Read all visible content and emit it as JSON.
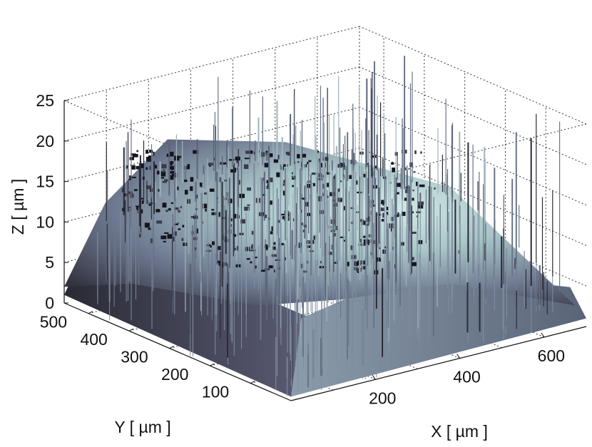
{
  "chart_data": {
    "type": "surface",
    "title": "",
    "xlabel": "X [ µm ]",
    "ylabel": "Y [ µm ]",
    "zlabel": "Z [ µm ]",
    "x_ticks": [
      "200",
      "400",
      "600"
    ],
    "y_ticks": [
      "100",
      "200",
      "300",
      "400",
      "500"
    ],
    "z_ticks": [
      "0",
      "5",
      "10",
      "15",
      "20",
      "25"
    ],
    "xlim": [
      0,
      700
    ],
    "ylim": [
      0,
      560
    ],
    "zlim": [
      0,
      25
    ],
    "grid": true,
    "colormap": [
      "#15151d",
      "#3e3e52",
      "#74809a",
      "#a8c4c8",
      "#cfe9e6"
    ],
    "surface_peak_z": 17,
    "spike_max_z": 25
  }
}
